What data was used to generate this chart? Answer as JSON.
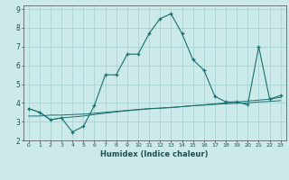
{
  "xlabel": "Humidex (Indice chaleur)",
  "bg_color": "#cceaea",
  "grid_color": "#aad4d4",
  "line_color": "#1a7070",
  "xlim": [
    -0.5,
    23.5
  ],
  "ylim": [
    2.0,
    9.2
  ],
  "xticks": [
    0,
    1,
    2,
    3,
    4,
    5,
    6,
    7,
    8,
    9,
    10,
    11,
    12,
    13,
    14,
    15,
    16,
    17,
    18,
    19,
    20,
    21,
    22,
    23
  ],
  "yticks": [
    2,
    3,
    4,
    5,
    6,
    7,
    8,
    9
  ],
  "curve1_x": [
    0,
    1,
    2,
    3,
    4,
    5,
    6,
    7,
    8,
    9,
    10,
    11,
    12,
    13,
    14,
    15,
    16,
    17,
    18,
    19,
    20,
    21,
    22,
    23
  ],
  "curve1_y": [
    3.7,
    3.5,
    3.1,
    3.2,
    2.45,
    2.75,
    3.85,
    5.5,
    5.5,
    6.6,
    6.6,
    7.7,
    8.5,
    8.75,
    7.7,
    6.3,
    5.75,
    4.35,
    4.05,
    4.05,
    3.9,
    7.0,
    4.2,
    4.4
  ],
  "curve2_x": [
    0,
    1,
    2,
    3,
    4,
    5,
    6,
    7,
    8,
    9,
    10,
    11,
    12,
    13,
    14,
    15,
    16,
    17,
    18,
    19,
    20,
    21,
    22,
    23
  ],
  "curve2_y": [
    3.3,
    3.3,
    3.35,
    3.35,
    3.38,
    3.4,
    3.45,
    3.5,
    3.55,
    3.6,
    3.65,
    3.7,
    3.72,
    3.75,
    3.8,
    3.85,
    3.88,
    3.92,
    3.95,
    3.98,
    4.0,
    4.05,
    4.08,
    4.12
  ],
  "curve3_x": [
    0,
    1,
    2,
    3,
    4,
    5,
    6,
    7,
    8,
    9,
    10,
    11,
    12,
    13,
    14,
    15,
    16,
    17,
    18,
    19,
    20,
    21,
    22,
    23
  ],
  "curve3_y": [
    3.7,
    3.5,
    3.1,
    3.2,
    3.25,
    3.3,
    3.38,
    3.45,
    3.52,
    3.58,
    3.63,
    3.68,
    3.72,
    3.76,
    3.8,
    3.85,
    3.9,
    3.95,
    4.0,
    4.05,
    4.1,
    4.15,
    4.2,
    4.3
  ]
}
